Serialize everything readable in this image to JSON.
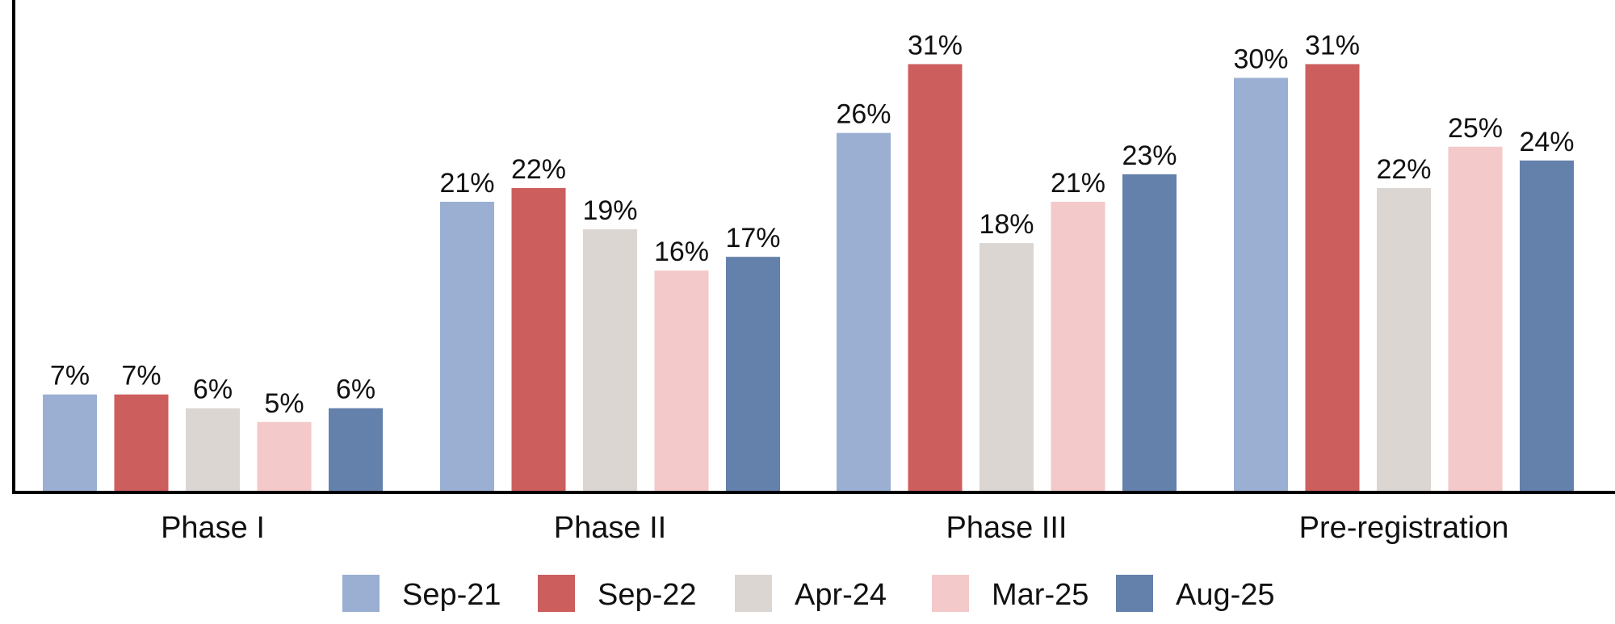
{
  "chart_data": {
    "type": "bar",
    "categories": [
      "Phase I",
      "Phase II",
      "Phase III",
      "Pre-registration"
    ],
    "series": [
      {
        "name": "Sep-21",
        "color": "#9aafd2",
        "values": [
          7,
          21,
          26,
          30
        ],
        "labels": [
          "7%",
          "21%",
          "26%",
          "30%"
        ]
      },
      {
        "name": "Sep-22",
        "color": "#cd5e5e",
        "values": [
          7,
          22,
          31,
          31
        ],
        "labels": [
          "7%",
          "22%",
          "31%",
          "31%"
        ]
      },
      {
        "name": "Apr-24",
        "color": "#dcd6d3",
        "values": [
          6,
          19,
          18,
          22
        ],
        "labels": [
          "6%",
          "19%",
          "18%",
          "22%"
        ]
      },
      {
        "name": "Mar-25",
        "color": "#f4c9c9",
        "values": [
          5,
          16,
          21,
          25
        ],
        "labels": [
          "5%",
          "16%",
          "21%",
          "25%"
        ]
      },
      {
        "name": "Aug-25",
        "color": "#6481ab",
        "values": [
          6,
          17,
          23,
          24
        ],
        "labels": [
          "6%",
          "17%",
          "23%",
          "24%"
        ]
      }
    ],
    "unit": "%",
    "ylim": [
      0,
      35
    ],
    "grid": false,
    "y_axis_ticks": false,
    "legend_position": "bottom"
  }
}
